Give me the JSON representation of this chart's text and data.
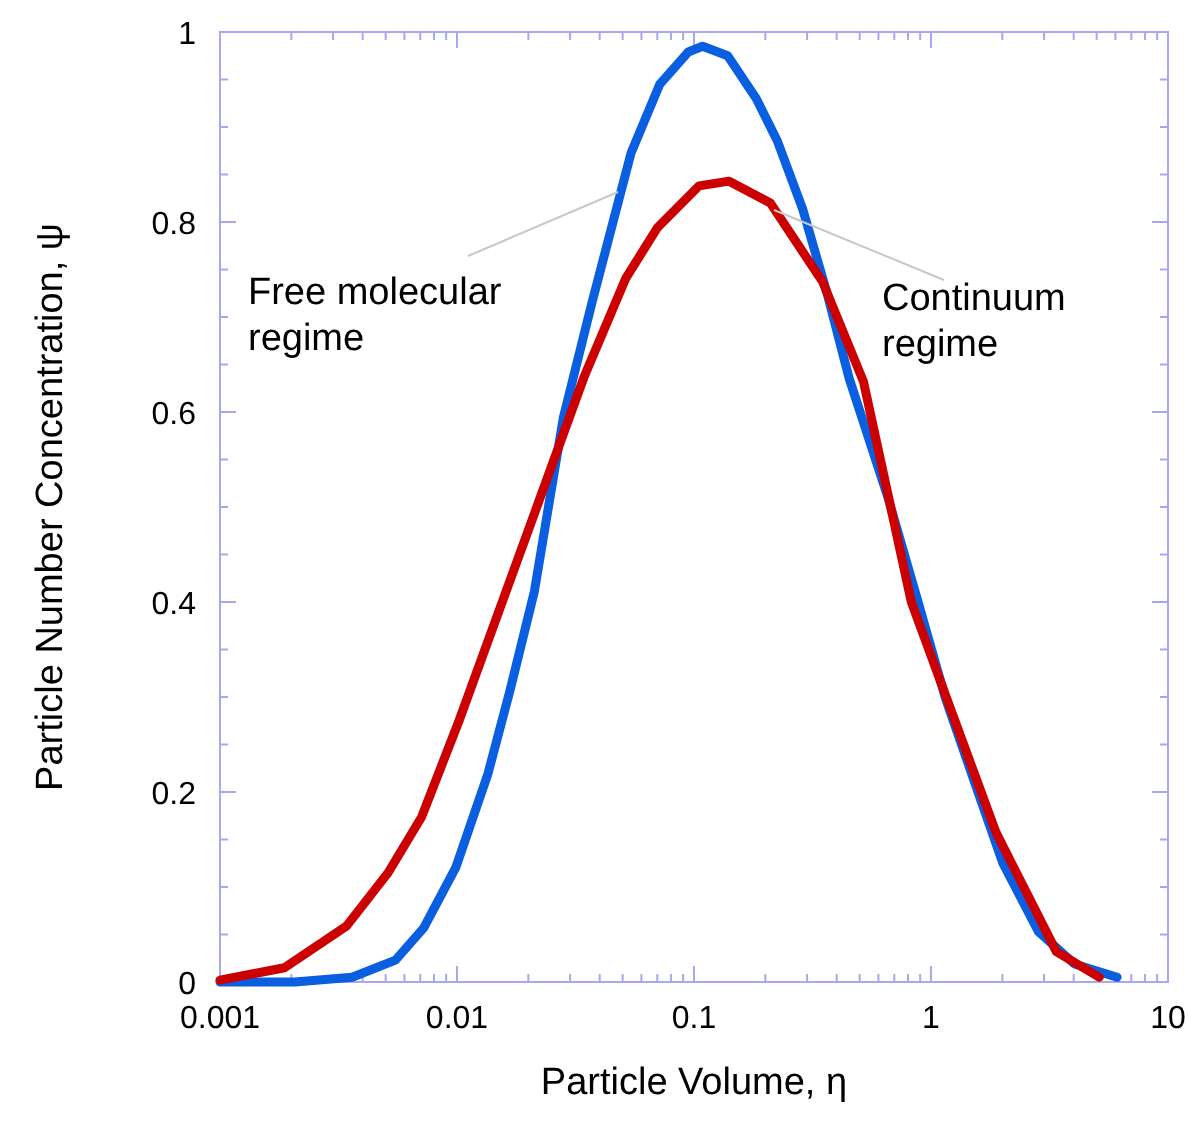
{
  "chart_data": {
    "type": "line",
    "xlabel": "Particle Volume, η",
    "ylabel": "Particle Number Concentration, ψ",
    "log": "x",
    "xlim": [
      0.001,
      10
    ],
    "xticks": [
      0.001,
      0.01,
      0.1,
      1,
      10
    ],
    "ylim": [
      0,
      1
    ],
    "yticks": [
      0,
      0.2,
      0.4,
      0.6,
      0.8,
      1
    ],
    "grid": false,
    "marker": "none",
    "line_style": "solid",
    "series": [
      {
        "name": "Free molecular regime",
        "color": "#0a5fe0",
        "x": [
          0.001,
          0.00207,
          0.00361,
          0.0055,
          0.00724,
          0.0099,
          0.0135,
          0.0167,
          0.0212,
          0.0281,
          0.0371,
          0.0543,
          0.0717,
          0.0946,
          0.1087,
          0.1387,
          0.183,
          0.225,
          0.288,
          0.367,
          0.452,
          0.66,
          0.873,
          1.153,
          1.578,
          2.01,
          2.84,
          4.03,
          6.1
        ],
        "values": [
          0,
          0,
          0.005,
          0.023,
          0.057,
          0.121,
          0.219,
          0.306,
          0.411,
          0.594,
          0.715,
          0.873,
          0.945,
          0.979,
          0.985,
          0.975,
          0.93,
          0.885,
          0.813,
          0.722,
          0.635,
          0.509,
          0.404,
          0.298,
          0.2,
          0.125,
          0.053,
          0.019,
          0.005
        ]
      },
      {
        "name": "Continuum regime",
        "color": "#cc0000",
        "x": [
          0.001,
          0.00187,
          0.00342,
          0.00512,
          0.0071,
          0.0102,
          0.0345,
          0.0516,
          0.0701,
          0.105,
          0.1406,
          0.21,
          0.349,
          0.519,
          0.826,
          1.876,
          3.38,
          5.13
        ],
        "values": [
          0.002,
          0.015,
          0.059,
          0.115,
          0.174,
          0.275,
          0.638,
          0.741,
          0.794,
          0.838,
          0.843,
          0.82,
          0.737,
          0.632,
          0.4,
          0.158,
          0.032,
          0.005
        ]
      }
    ]
  }
}
